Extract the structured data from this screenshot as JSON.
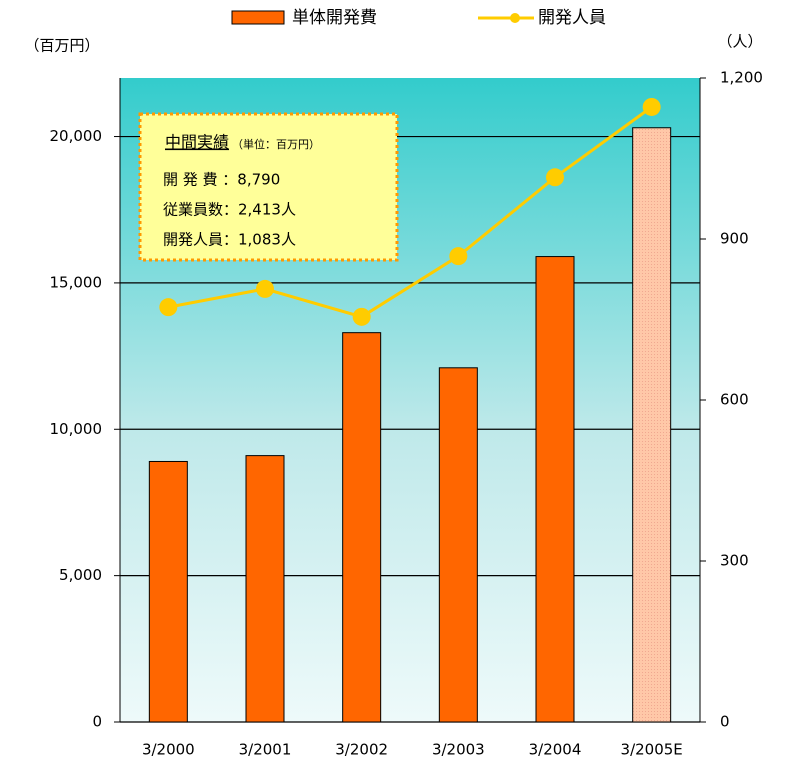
{
  "chart_data": {
    "type": "bar-line",
    "categories": [
      "3/2000",
      "3/2001",
      "3/2002",
      "3/2003",
      "3/2004",
      "3/2005E"
    ],
    "series": [
      {
        "name": "単体開発費",
        "type": "bar",
        "color": "#ff6600",
        "colors": [
          "#ff6600",
          "#ff6600",
          "#ff6600",
          "#ff6600",
          "#ff6600",
          "#ffc8a8"
        ],
        "values": [
          8900,
          9100,
          13300,
          12100,
          15900,
          20300
        ]
      },
      {
        "name": "開発人員",
        "type": "line",
        "axis": "y2",
        "color": "#ffcc00",
        "values": [
          773,
          807,
          755,
          868,
          1015,
          1146
        ]
      }
    ],
    "ylabel": "（百万円）",
    "y2label": "（人）",
    "ylim": [
      0,
      22000
    ],
    "yticks": [
      0,
      {
        "value": 5000,
        "label": "5,000"
      },
      {
        "value": 10000,
        "label": "10,000"
      },
      {
        "value": 15000,
        "label": "15,000"
      },
      {
        "value": 20000,
        "label": "20,000"
      }
    ],
    "y2lim": [
      0,
      1200
    ],
    "y2ticks": [
      0,
      300,
      600,
      900,
      {
        "value": 1200,
        "label": "1,200"
      }
    ],
    "grid": true,
    "annotation": {
      "title": "中間実績",
      "unit": "（単位：百万円）",
      "lines": [
        "開 発 費 ：8,790",
        "従業員数：2,413人",
        "開発人員：1,083人"
      ]
    }
  }
}
